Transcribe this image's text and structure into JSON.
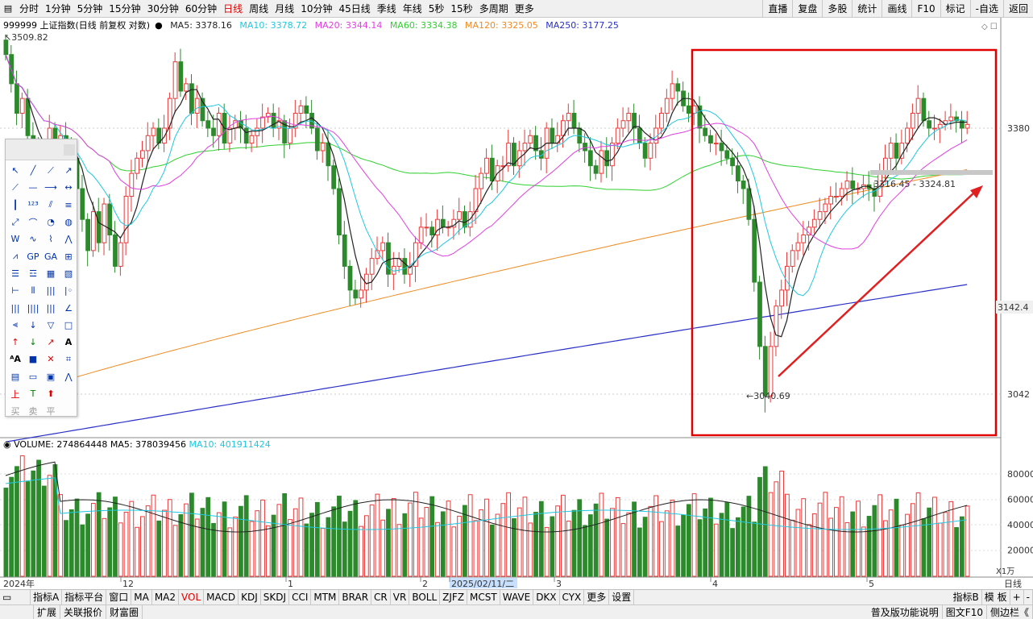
{
  "timeframes": [
    "分时",
    "1分钟",
    "5分钟",
    "15分钟",
    "30分钟",
    "60分钟",
    "日线",
    "周线",
    "月线",
    "10分钟",
    "45日线",
    "季线",
    "年线",
    "5秒",
    "15秒",
    "多周期",
    "更多"
  ],
  "active_timeframe": "日线",
  "right_buttons": [
    "直播",
    "复盘",
    "多股",
    "统计",
    "画线",
    "F10",
    "标记",
    "-自选",
    "返回"
  ],
  "legend": {
    "title": "999999 上证指数(日线 前复权 对数)",
    "ma5": "MA5: 3378.16",
    "ma10": "MA10: 3378.72",
    "ma20": "MA20: 3344.14",
    "ma60": "MA60: 3334.38",
    "ma120": "MA120: 3325.05",
    "ma250": "MA250: 3177.25"
  },
  "colors": {
    "up": "#e83a3a",
    "down": "#2c8a2c",
    "ma5": "#222222",
    "ma10": "#1fc8e0",
    "ma20": "#e040e0",
    "ma60": "#30d030",
    "ma120": "#f08a20",
    "ma250": "#2a30c8",
    "box": "#e00000",
    "arrow": "#e02020"
  },
  "price_labels": {
    "high": "3509.82",
    "low": "3040.69",
    "range": "3316.45 - 3324.81",
    "axis_3380": "3380",
    "axis_3142": "3142.4",
    "axis_3042": "3042"
  },
  "volume_legend": {
    "volume": "VOLUME: 274864448",
    "ma5": "MA5: 378039456",
    "ma10": "MA10: 401911424"
  },
  "volume_axis": [
    "80000",
    "60000",
    "40000",
    "20000"
  ],
  "volume_unit": "X1万",
  "date_axis": {
    "year": "2024年",
    "labels": [
      "12",
      "1",
      "2",
      "2025/02/11/二",
      "3",
      "4",
      "5"
    ],
    "period": "日线"
  },
  "chart_data": {
    "type": "candlestick",
    "title": "999999 上证指数(日线 前复权 对数)",
    "marked_high": 3509.82,
    "marked_low": 3040.69,
    "support_range": [
      3316.45,
      3324.81
    ],
    "latest_ma": {
      "MA5": 3378.16,
      "MA10": 3378.72,
      "MA20": 3344.14,
      "MA60": 3334.38,
      "MA120": 3325.05,
      "MA250": 3177.25
    },
    "y_ticks": [
      3380,
      3142.4,
      3042
    ],
    "volume": {
      "latest": 274864448,
      "MA5": 378039456,
      "MA10": 401911424,
      "y_ticks": [
        80000,
        60000,
        40000,
        20000
      ],
      "unit": "X1万"
    }
  },
  "indicators": [
    "指标A",
    "指标平台",
    "窗口",
    "MA",
    "MA2",
    "VOL",
    "MACD",
    "KDJ",
    "SKDJ",
    "CCI",
    "MTM",
    "BRAR",
    "CR",
    "VR",
    "BOLL",
    "ZJFZ",
    "MCST",
    "WAVE",
    "DKX",
    "CYX",
    "更多",
    "设置"
  ],
  "active_indicator": "VOL",
  "indicator_right": [
    "指标B",
    "模 板",
    "+",
    "-"
  ],
  "status_left": [
    "扩展",
    "关联报价",
    "财富圈"
  ],
  "status_right": [
    "普及版功能说明",
    "图文F10",
    "侧边栏《"
  ],
  "toolbox_bottom": [
    "买",
    "卖",
    "平"
  ]
}
